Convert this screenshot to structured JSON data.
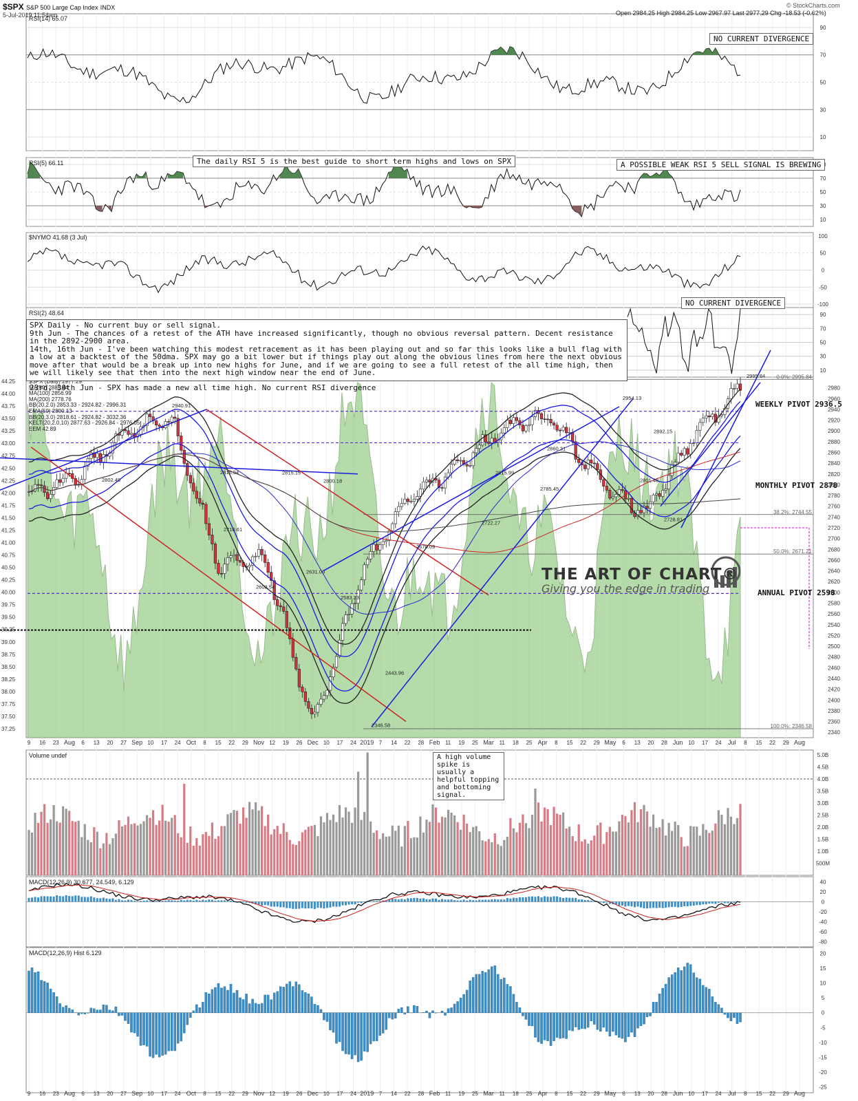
{
  "header": {
    "symbol": "$SPX",
    "name": "S&P 500 Large Cap Index",
    "exchange": "INDX",
    "datetime": "5-Jul-2019 11:54am",
    "ohlc": "Open 2984.25  High 2984.25  Low 2967.97  Last 2977.29  Chg -18.53 (-0.62%)",
    "source": "© StockCharts.com"
  },
  "panels": {
    "rsi14": {
      "label": "RSI(14) 65.07",
      "note": "NO CURRENT DIVERGENCE",
      "ticks": [
        "90",
        "70",
        "50",
        "30",
        "10"
      ]
    },
    "rsi5": {
      "label": "RSI(5) 66.11",
      "note": "A POSSIBLE WEAK RSI 5 SELL SIGNAL IS BREWING",
      "guide": "The daily RSI 5 is the best guide to short term highs and lows on SPX",
      "ticks": [
        "90",
        "70",
        "50",
        "30",
        "10"
      ]
    },
    "nymo": {
      "label": "$NYMO 41.68 (3 Jul)",
      "ticks": [
        "100",
        "50",
        "0",
        "-50",
        "-100"
      ]
    },
    "rsi2": {
      "label": "RSI(2) 48.64",
      "note": "NO CURRENT DIVERGENCE",
      "ticks": [
        "90",
        "70",
        "50",
        "30",
        "10"
      ]
    },
    "price": {
      "legend": [
        "$SPX (Daily) 2977.29",
        "MA(50) 2885.44",
        "MA(100) 2856.99",
        "MA(200) 2778.76",
        "BB(20,2.0) 2853.33 - 2924.82 - 2996.31",
        "EMA(50) 2890.13",
        "BB(20,3.0) 2818.61 - 2924.82 - 3032.36",
        "KELT(20,2.0,10) 2877.63 - 2926.84 - 2976.05",
        "EEM 42.89"
      ],
      "weekly_pivot": "WEEKLY PIVOT 2936.5",
      "monthly_pivot": "MONTHLY PIVOT 2878",
      "annual_pivot": "ANNUAL PIVOT 2598",
      "fib_labels": [
        "0.0%: 2995.84",
        "38.2%: 2744.55",
        "50.0%: 2671.21",
        "100.0%: 2346.58"
      ],
      "price_labels": [
        "2940.91",
        "2954.13",
        "2995.84",
        "2892.15",
        "2802.49",
        "2816.94",
        "2815.15",
        "2800.18",
        "2710.61",
        "2603.54",
        "2631.09",
        "2583.23",
        "2443.96",
        "2346.58",
        "2678.09",
        "2815.99",
        "2785.45",
        "2722.27",
        "2801.48",
        "2728.81",
        "2860.31"
      ],
      "left_ticks": [
        "44.25",
        "44.00",
        "43.75",
        "43.50",
        "43.25",
        "43.00",
        "42.75",
        "42.50",
        "42.25",
        "42.00",
        "41.75",
        "41.50",
        "41.25",
        "41.00",
        "40.75",
        "40.50",
        "40.25",
        "40.00",
        "39.75",
        "39.50",
        "39.25",
        "39.00",
        "38.75",
        "38.50",
        "38.25",
        "38.00",
        "37.75",
        "37.50",
        "37.25"
      ],
      "right_ticks": [
        "2980",
        "2960",
        "2940",
        "2920",
        "2900",
        "2880",
        "2860",
        "2840",
        "2820",
        "2800",
        "2780",
        "2760",
        "2740",
        "2720",
        "2700",
        "2680",
        "2660",
        "2640",
        "2620",
        "2600",
        "2580",
        "2560",
        "2540",
        "2520",
        "2500",
        "2480",
        "2460",
        "2440",
        "2420",
        "2400",
        "2380",
        "2360",
        "2340"
      ]
    },
    "volume": {
      "label": "Volume undef",
      "note_lines": [
        "A high volume spike is",
        "usually a helpful topping",
        "and bottoming signal."
      ],
      "ticks": [
        "5.0B",
        "4.5B",
        "4.0B",
        "3.5B",
        "3.0B",
        "2.5B",
        "2.0B",
        "1.5B",
        "1.0B",
        "500M"
      ]
    },
    "macd": {
      "label": "MACD(12,26,9) 30.677, 24.549, 6.129",
      "ticks": [
        "40",
        "20",
        "0",
        "-20",
        "-40",
        "-60",
        "-80"
      ]
    },
    "hist": {
      "label": "MACD(12,26,9) Hist 6.129",
      "ticks": [
        "20",
        "15",
        "10",
        "5",
        "0",
        "-5",
        "-10",
        "-15",
        "-20",
        "-25"
      ]
    }
  },
  "x_axis": [
    "9",
    "16",
    "23",
    "Aug",
    "6",
    "13",
    "20",
    "27",
    "Sep",
    "10",
    "17",
    "24",
    "Oct",
    "8",
    "15",
    "22",
    "29",
    "Nov",
    "12",
    "19",
    "26",
    "Dec",
    "10",
    "17",
    "24",
    "2019",
    "7",
    "14",
    "22",
    "28",
    "Feb",
    "11",
    "19",
    "25",
    "Mar",
    "11",
    "18",
    "25",
    "Apr",
    "8",
    "15",
    "22",
    "29",
    "May",
    "6",
    "13",
    "20",
    "28",
    "Jun",
    "10",
    "17",
    "24",
    "Jul",
    "8",
    "15",
    "22",
    "29",
    "Aug"
  ],
  "annotation": {
    "lines": [
      "SPX Daily - No current buy or sell signal.",
      "9th Jun - The chances of a retest of the ATH have increased significantly, though no obvious reversal pattern. Decent resistance in the 2892-2900 area.",
      "14th, 16th Jun - I've been watching this modest retracement as it has been playing out and so far this looks like a bull flag with a low at a backtest of the 50dma. SPX may go a bit lower but if things play out along the obvious lines from here the next obvious move after that would be a break up into new highs for June, and if we are going to see a full retest of the all time high, then we will likely see that then into the next high window near the end of June.",
      "23rd, 30th Jun - SPX has made a new all time high. No current RSI divergence"
    ]
  },
  "logo": {
    "title": "THE ART OF CHART®",
    "subtitle": "Giving you the edge in trading"
  },
  "chart_data": {
    "type": "line",
    "title": "$SPX S&P 500 Large Cap Index INDX",
    "x": [
      "2018-07-09",
      "2018-08-01",
      "2018-09-04",
      "2018-10-01",
      "2018-10-29",
      "2018-11-26",
      "2018-12-24",
      "2019-01-22",
      "2019-02-19",
      "2019-03-18",
      "2019-04-15",
      "2019-05-01",
      "2019-05-13",
      "2019-06-03",
      "2019-06-17",
      "2019-07-05"
    ],
    "series": [
      {
        "name": "$SPX (Daily) 2977.29",
        "values": [
          2780,
          2815,
          2895,
          2925,
          2650,
          2660,
          2351,
          2630,
          2780,
          2830,
          2905,
          2925,
          2810,
          2745,
          2890,
          2977
        ]
      }
    ],
    "colors": {
      "up": "#ffffff",
      "down": "#d8323c",
      "ma50": "#1a1ae0",
      "ma200": "#c22",
      "price_fill": "#9ccf8d",
      "rsi_fill": "#507a4f",
      "volume_up": "#999999",
      "volume_down": "#d77b84",
      "macd_hist": "#3c8ec6"
    }
  }
}
